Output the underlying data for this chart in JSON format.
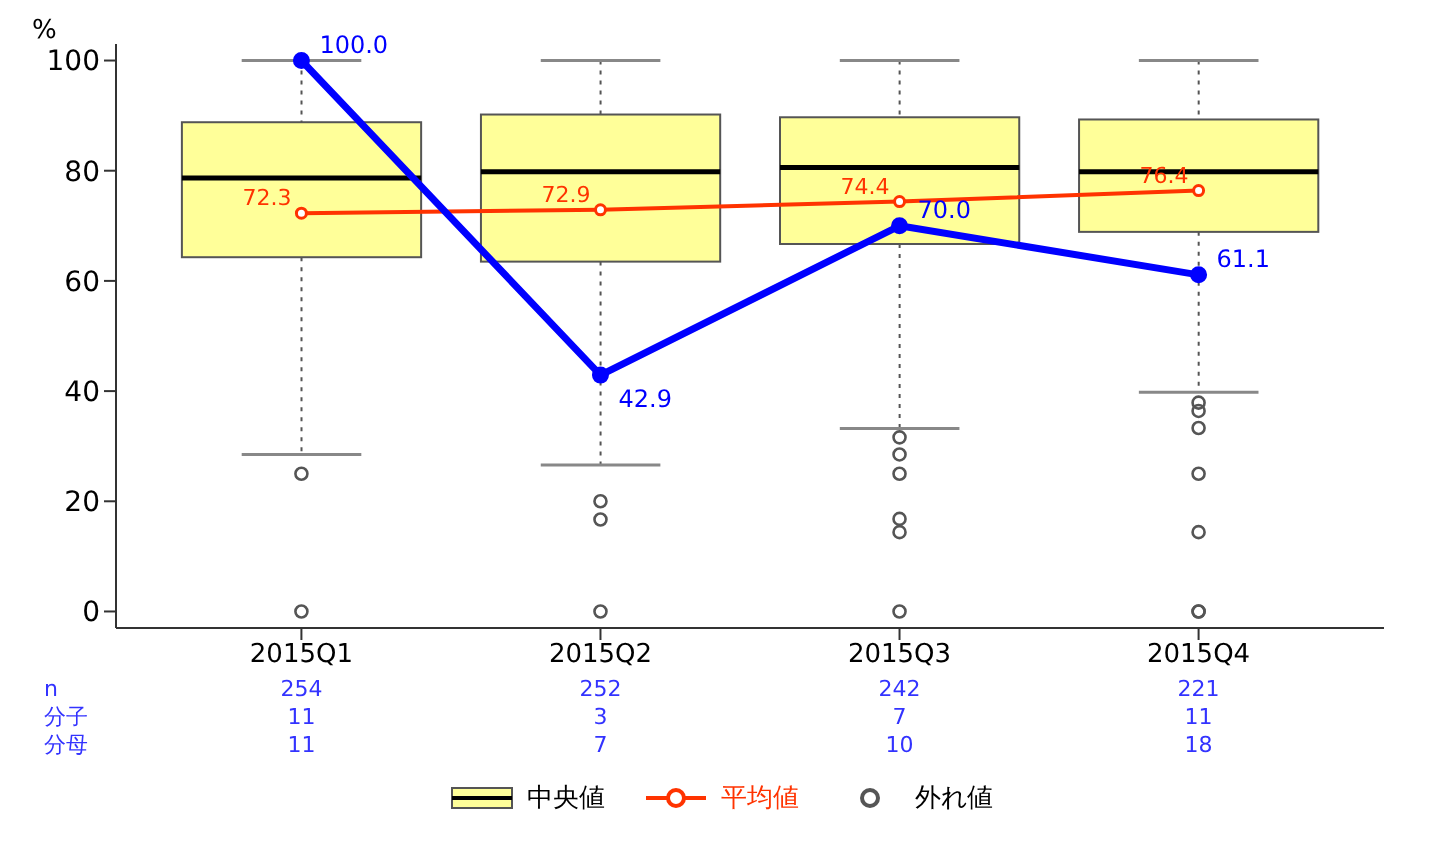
{
  "chart_data": {
    "type": "box",
    "ylabel": "%",
    "categories": [
      "2015Q1",
      "2015Q2",
      "2015Q3",
      "2015Q4"
    ],
    "ylim": [
      -3,
      103
    ],
    "yticks": [
      0,
      20,
      40,
      60,
      80,
      100
    ],
    "grid": false,
    "legend": "bottom",
    "series": [
      {
        "name": "中央値",
        "color": "#ffff99",
        "boxes": [
          {
            "low": 28.5,
            "q1": 64.3,
            "median": 78.7,
            "q3": 88.8,
            "high": 100
          },
          {
            "low": 26.6,
            "q1": 63.5,
            "median": 79.8,
            "q3": 90.2,
            "high": 100
          },
          {
            "low": 33.2,
            "q1": 66.7,
            "median": 80.6,
            "q3": 89.7,
            "high": 100
          },
          {
            "low": 39.8,
            "q1": 68.9,
            "median": 79.8,
            "q3": 89.3,
            "high": 100
          }
        ]
      },
      {
        "type": "line",
        "name": "平均値",
        "color": "#ff3300",
        "marker": "circle",
        "values": [
          72.3,
          72.9,
          74.4,
          76.4
        ],
        "value_labels": [
          "72.3",
          "72.9",
          "74.4",
          "76.4"
        ]
      },
      {
        "type": "scatter",
        "name": "外れ値",
        "color": "#555555",
        "marker": "circle",
        "x": [
          "2015Q1",
          "2015Q1",
          "2015Q2",
          "2015Q2",
          "2015Q2",
          "2015Q3",
          "2015Q3",
          "2015Q3",
          "2015Q3",
          "2015Q3",
          "2015Q3",
          "2015Q4",
          "2015Q4",
          "2015Q4",
          "2015Q4",
          "2015Q4",
          "2015Q4",
          "2015Q4"
        ],
        "values": [
          25,
          0,
          20,
          16.7,
          0,
          31.6,
          28.5,
          25,
          16.8,
          14.4,
          0,
          37.9,
          36.4,
          33.3,
          25,
          14.4,
          0,
          0
        ]
      },
      {
        "type": "line",
        "color": "#0000ff",
        "marker": "circle",
        "values": [
          100,
          42.9,
          70,
          61.1
        ],
        "value_labels": [
          "100.0",
          "42.9",
          "70.0",
          "61.1"
        ]
      }
    ],
    "annotations": [
      "n",
      "254",
      "252",
      "242",
      "221",
      "分子",
      "11",
      "3",
      "7",
      "11",
      "分母",
      "11",
      "7",
      "10",
      "18"
    ]
  }
}
